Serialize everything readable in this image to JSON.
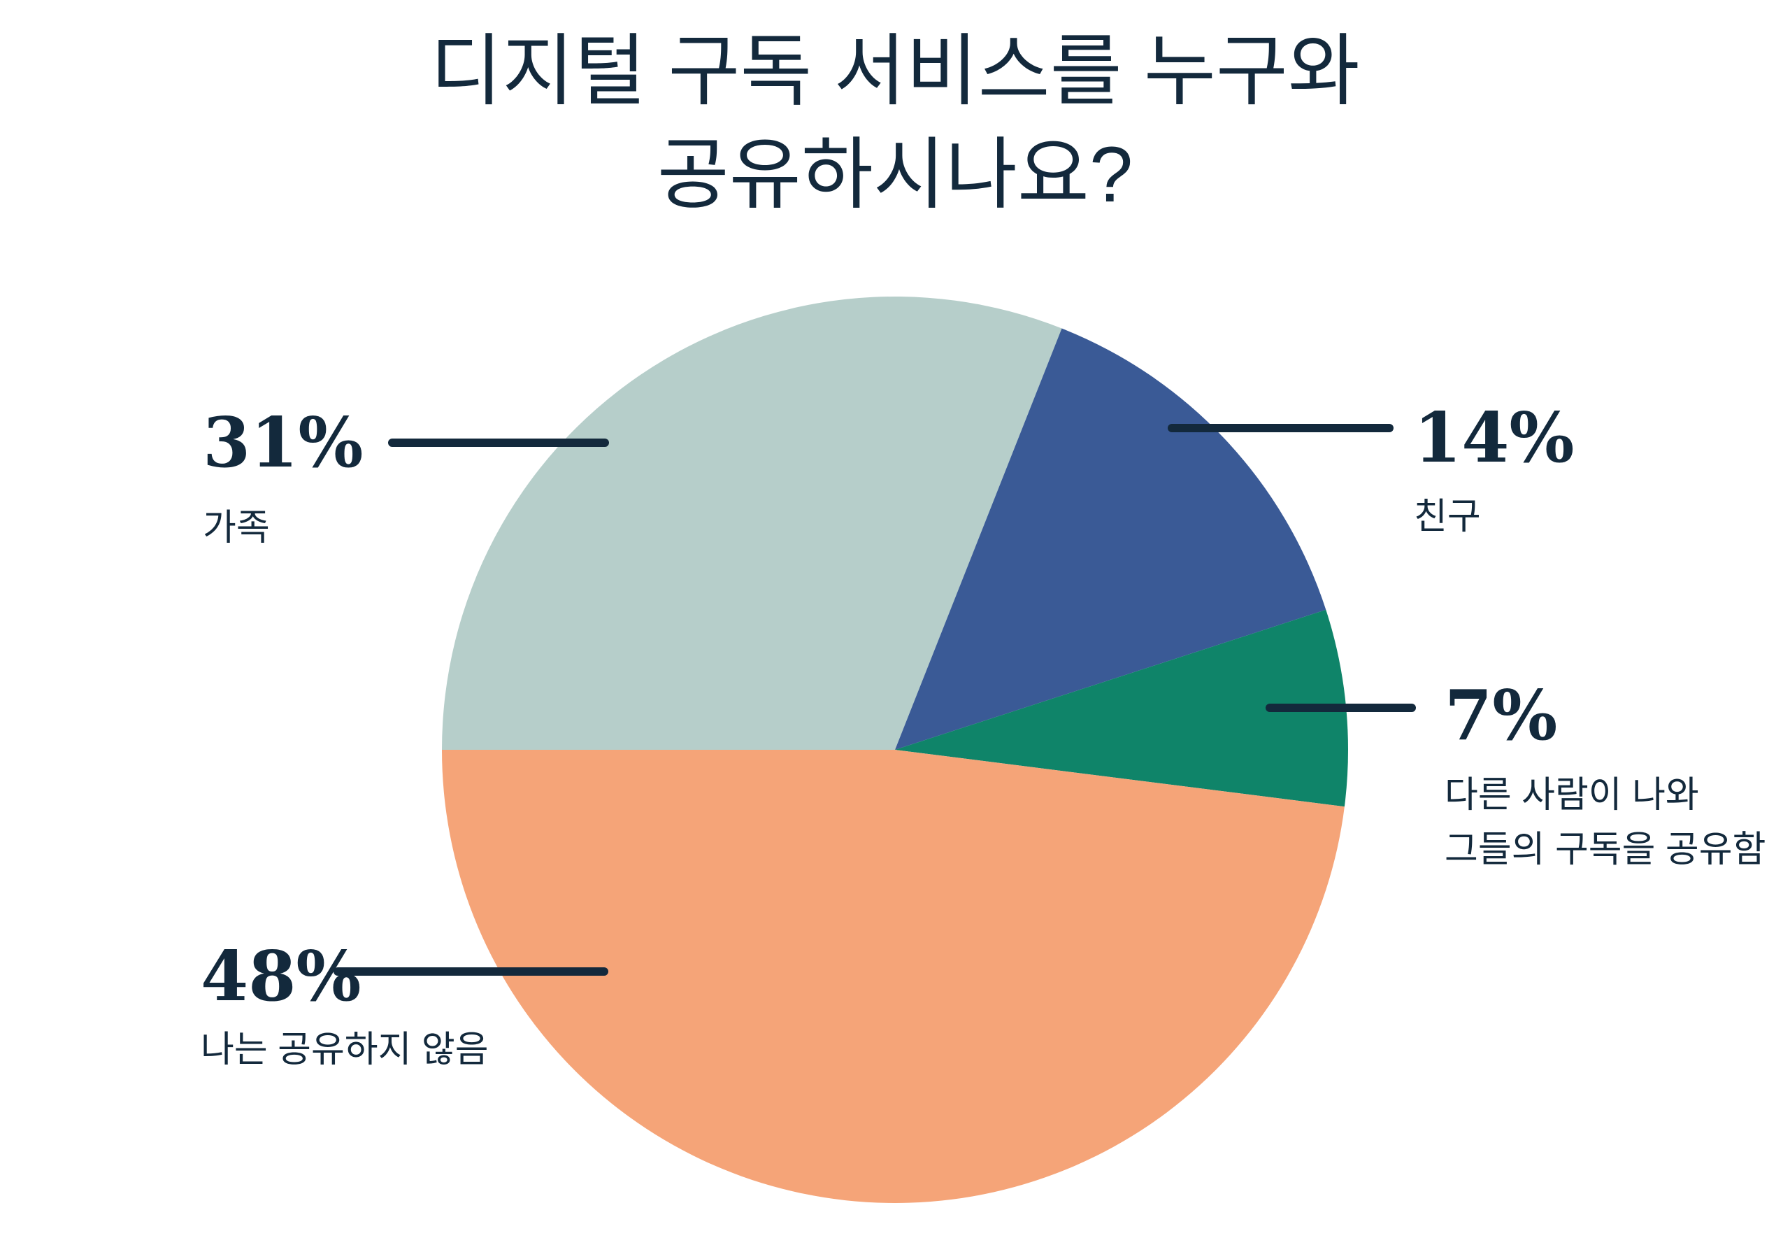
{
  "title": {
    "line1": "디지털 구독 서비스를 누구와",
    "line2": "공유하시나요?"
  },
  "colors": {
    "background": "#FFFFFF",
    "text_navy": "#13293C",
    "leader_line": "#13293C",
    "family_teal": "#B6CECA",
    "friends_blue": "#3A5A96",
    "others_green": "#0F8469",
    "no_share_orange": "#F5A478"
  },
  "chart_data": {
    "type": "pie",
    "title": "디지털 구독 서비스를 누구와 공유하시나요?",
    "start_angle_deg_from_top_clockwise": 270,
    "direction": "clockwise",
    "legend_position": "external-callouts",
    "slices": [
      {
        "key": "family",
        "label": "가족",
        "value": 31,
        "display": "31%",
        "color": "#B6CECA"
      },
      {
        "key": "friends",
        "label": "친구",
        "value": 14,
        "display": "14%",
        "color": "#3A5A96"
      },
      {
        "key": "others-share",
        "label": "다른 사람이 나와 그들의 구독을 공유함",
        "value": 7,
        "display": "7%",
        "color": "#0F8469"
      },
      {
        "key": "no-share",
        "label": "나는 공유하지 않음",
        "value": 48,
        "display": "48%",
        "color": "#F5A478"
      }
    ]
  },
  "callouts": {
    "family": {
      "pct": "31%",
      "label": "가족"
    },
    "friends": {
      "pct": "14%",
      "label": "친구"
    },
    "others": {
      "pct": "7%",
      "label_line1": "다른 사람이 나와",
      "label_line2": "그들의 구독을 공유함"
    },
    "none": {
      "pct": "48%",
      "label": "나는 공유하지 않음"
    }
  }
}
